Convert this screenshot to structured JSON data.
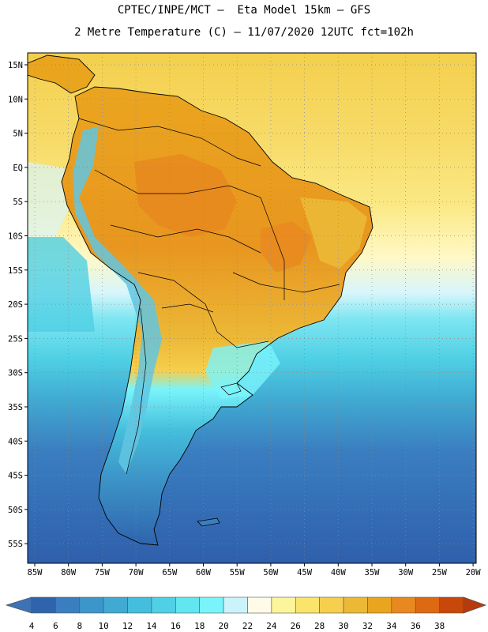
{
  "title": {
    "line1": "CPTEC/INPE/MCT –  Eta Model 15km – GFS",
    "line2": "2 Metre Temperature (C) – 11/07/2020 12UTC fct=102h"
  },
  "axes": {
    "lat_labels": [
      "15N",
      "10N",
      "5N",
      "EQ",
      "5S",
      "10S",
      "15S",
      "20S",
      "25S",
      "30S",
      "35S",
      "40S",
      "45S",
      "50S",
      "55S"
    ],
    "lon_labels": [
      "85W",
      "80W",
      "75W",
      "70W",
      "65W",
      "60W",
      "55W",
      "50W",
      "45W",
      "40W",
      "35W",
      "30W",
      "25W",
      "20W"
    ]
  },
  "colorbar": {
    "levels": [
      "4",
      "6",
      "8",
      "10",
      "12",
      "14",
      "16",
      "18",
      "20",
      "22",
      "24",
      "26",
      "28",
      "30",
      "32",
      "34",
      "36",
      "38"
    ],
    "colors": [
      "#3e72b6",
      "#2f64ad",
      "#3a7ec0",
      "#3d96c9",
      "#40aad2",
      "#44bedc",
      "#4fd0e4",
      "#62e6ef",
      "#7af4fb",
      "#cbf3fc",
      "#fffbe8",
      "#fdf59c",
      "#fae46b",
      "#f5cf4d",
      "#ecb937",
      "#eaa51f",
      "#e8881f",
      "#dd6912",
      "#c8470a",
      "#b63a0a"
    ]
  }
}
